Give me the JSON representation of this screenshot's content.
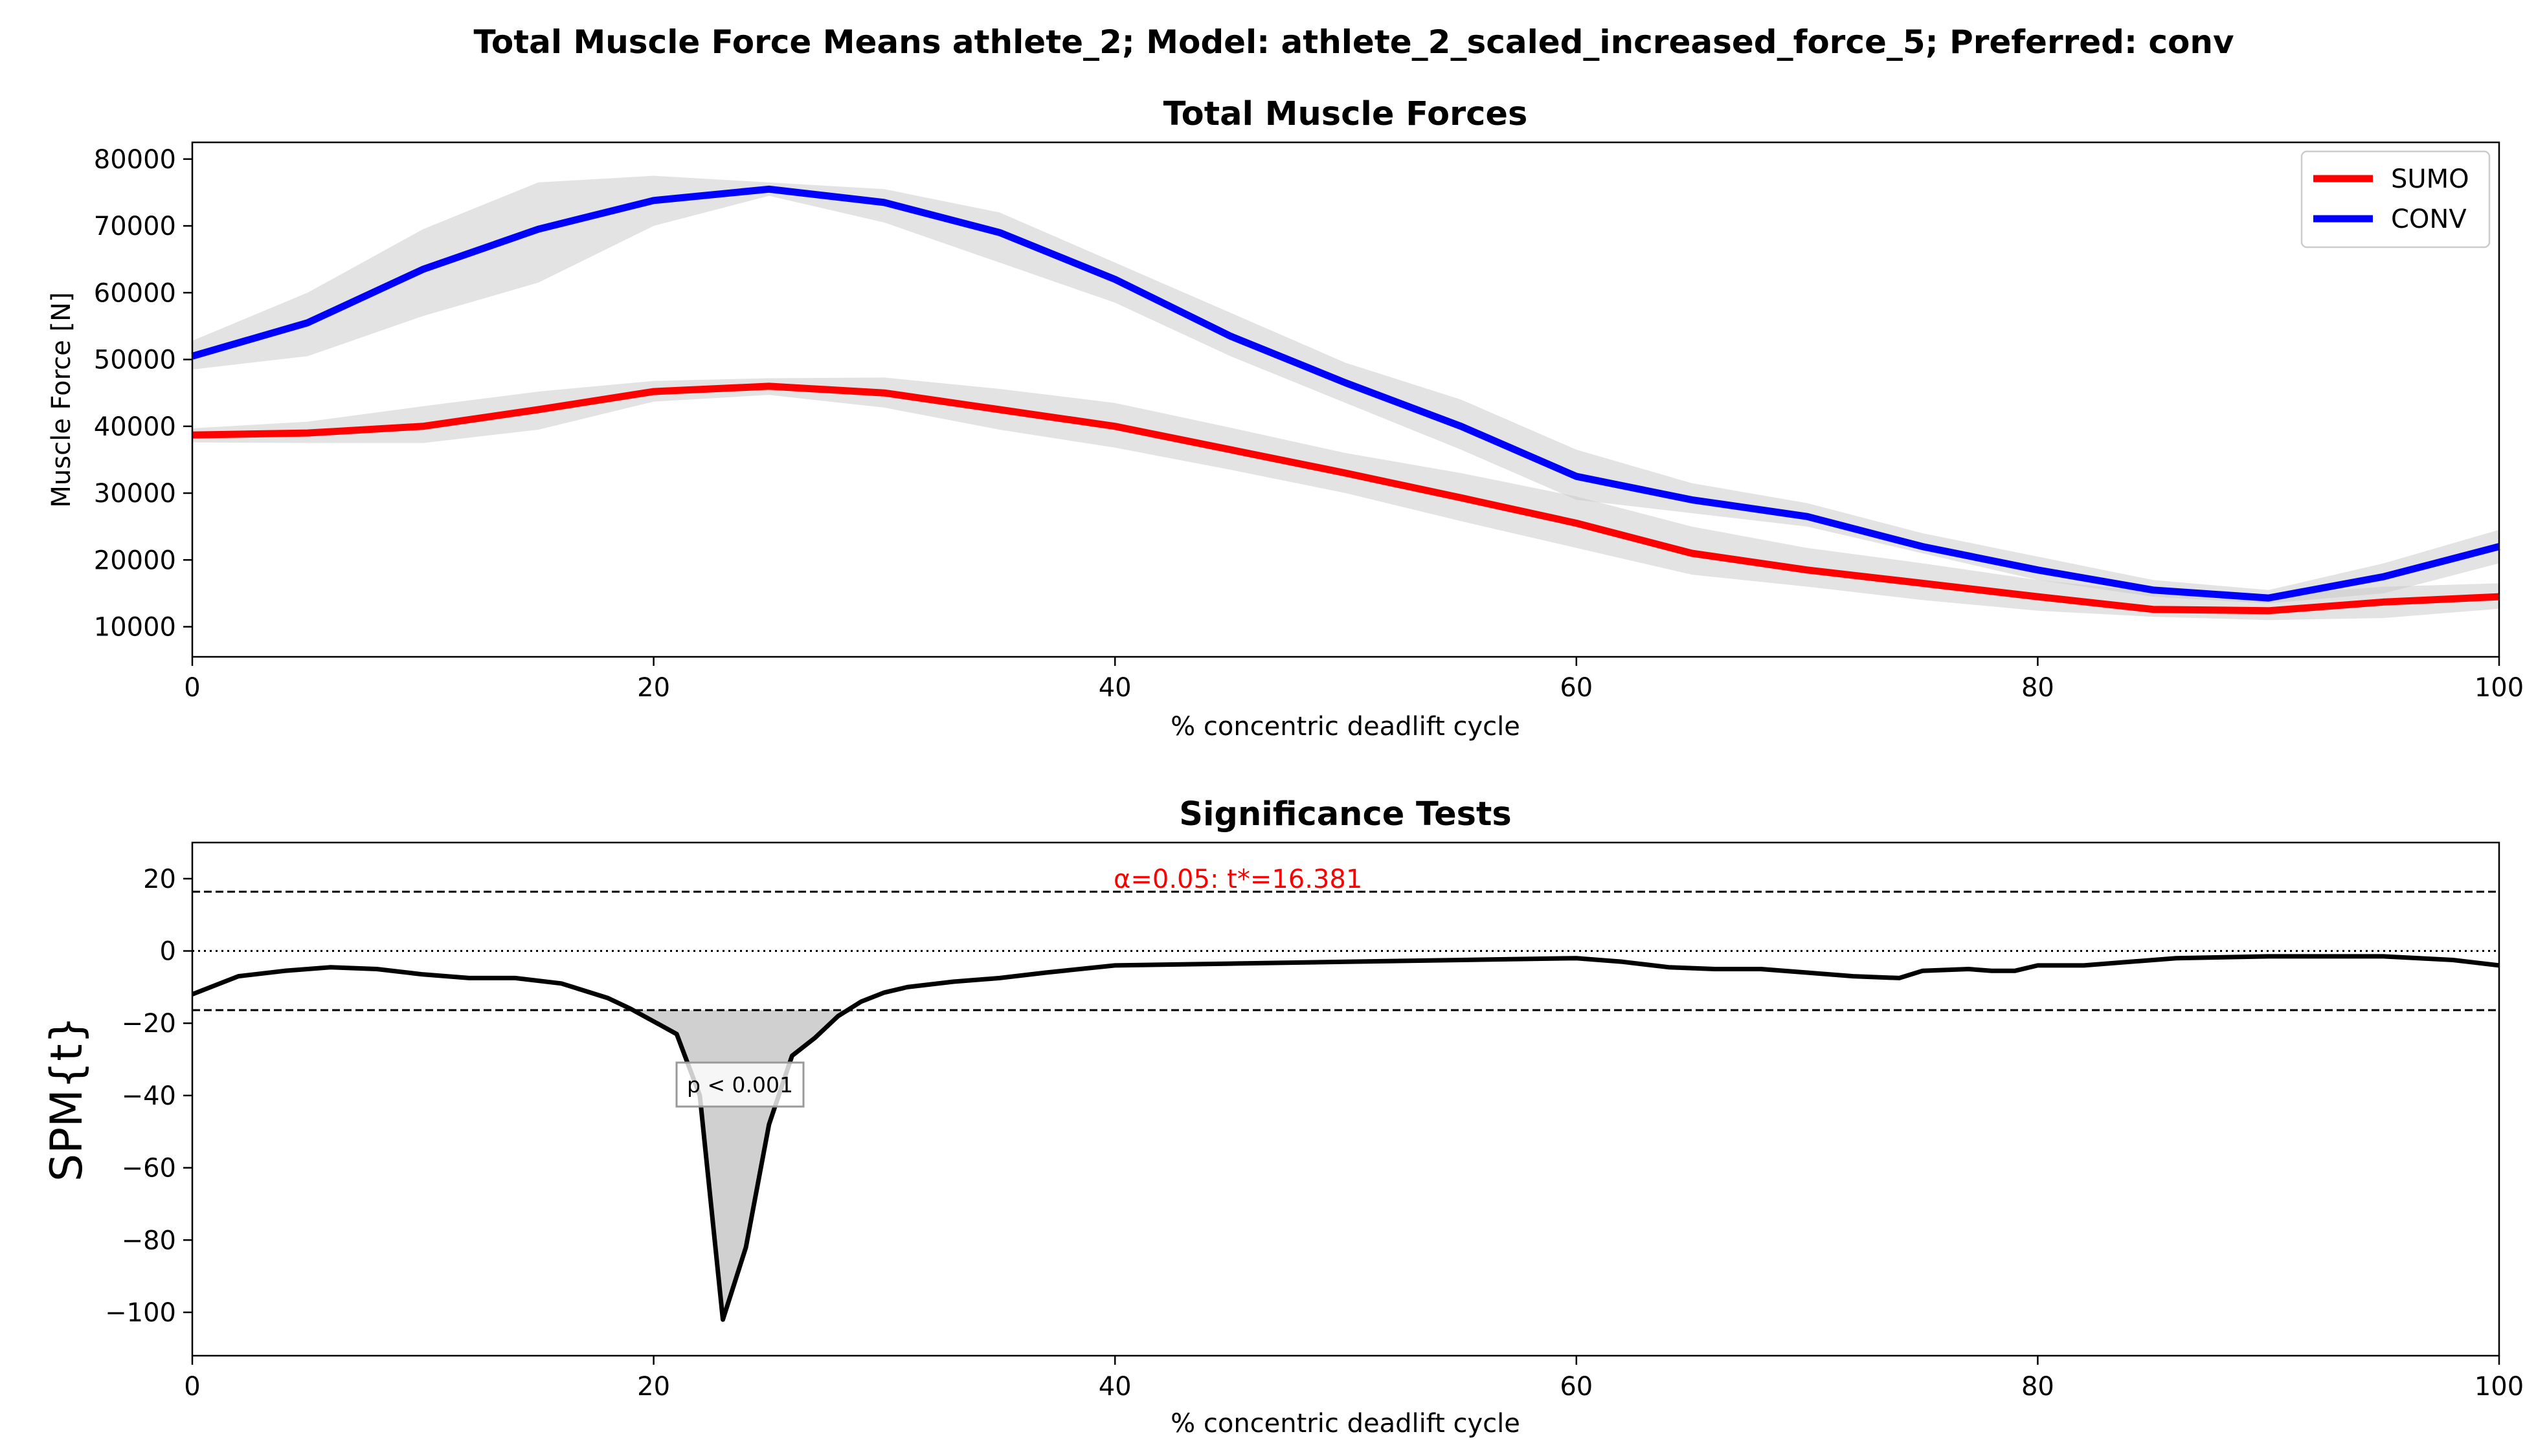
{
  "figure": {
    "suptitle": "Total Muscle Force Means athlete_2; Model: athlete_2_scaled_increased_force_5; Preferred: conv"
  },
  "chart_data": [
    {
      "type": "line",
      "title": "Total Muscle Forces",
      "xlabel": "% concentric deadlift cycle",
      "ylabel": "Muscle Force [N]",
      "xlim": [
        0,
        100
      ],
      "ylim": [
        5500,
        82500
      ],
      "xticks": [
        0,
        20,
        40,
        60,
        80,
        100
      ],
      "yticks": [
        10000,
        20000,
        30000,
        40000,
        50000,
        60000,
        70000,
        80000
      ],
      "grid": false,
      "legend_position": "top-right",
      "x": [
        0,
        5,
        10,
        15,
        20,
        25,
        30,
        35,
        40,
        45,
        50,
        55,
        60,
        65,
        70,
        75,
        80,
        85,
        90,
        95,
        100
      ],
      "series": [
        {
          "name": "SUMO",
          "color": "#ff0000",
          "values": [
            38700,
            39000,
            40000,
            42500,
            45200,
            46000,
            45000,
            42500,
            40000,
            36500,
            33000,
            29300,
            25500,
            21000,
            18500,
            16500,
            14500,
            12600,
            12400,
            13700,
            14500
          ],
          "band_upper": [
            39700,
            40700,
            43000,
            45200,
            46800,
            47200,
            47300,
            45600,
            43500,
            39800,
            36000,
            33000,
            29500,
            25000,
            21800,
            19500,
            17000,
            15200,
            14700,
            16000,
            16500
          ],
          "band_lower": [
            37600,
            37500,
            37500,
            39500,
            43700,
            44700,
            42800,
            39500,
            36800,
            33500,
            30000,
            25800,
            21800,
            17800,
            16000,
            14000,
            12400,
            11500,
            11000,
            11300,
            12700
          ]
        },
        {
          "name": "CONV",
          "color": "#0000ff",
          "values": [
            50500,
            55500,
            63500,
            69500,
            73800,
            75500,
            73500,
            69000,
            62000,
            53500,
            46500,
            40000,
            32500,
            29000,
            26500,
            22000,
            18500,
            15500,
            14300,
            17500,
            22000
          ],
          "band_upper": [
            52800,
            60000,
            69500,
            76500,
            77500,
            76500,
            75500,
            72000,
            64500,
            57000,
            49500,
            44000,
            36500,
            31500,
            28500,
            24000,
            20500,
            17000,
            15500,
            19500,
            24500
          ],
          "band_lower": [
            48500,
            50500,
            56500,
            61500,
            70000,
            74500,
            70500,
            64500,
            58500,
            50500,
            43500,
            36500,
            29000,
            27000,
            25000,
            21000,
            17000,
            14500,
            13500,
            15000,
            19500
          ]
        }
      ]
    },
    {
      "type": "line",
      "title": "Significance Tests",
      "xlabel": "% concentric deadlift cycle",
      "ylabel": "SPM{t}",
      "xlim": [
        0,
        100
      ],
      "ylim": [
        -112,
        30
      ],
      "xticks": [
        0,
        20,
        40,
        60,
        80,
        100
      ],
      "yticks": [
        20,
        0,
        -20,
        -40,
        -60,
        -80,
        -100
      ],
      "grid": false,
      "threshold": 16.381,
      "threshold_label": "α=0.05:  t*=16.381",
      "cluster_label": "p < 0.001",
      "cluster_range": [
        18.8,
        28.8
      ],
      "series": [
        {
          "name": "",
          "color": "#000000",
          "x": [
            0,
            2,
            4,
            6,
            8,
            10,
            12,
            14,
            16,
            18,
            19,
            20,
            21,
            22,
            23,
            24,
            25,
            26,
            27,
            28,
            29,
            30,
            31,
            33,
            35,
            37,
            40,
            45,
            50,
            55,
            60,
            62,
            64,
            66,
            68,
            70,
            72,
            74,
            75,
            77,
            78,
            79,
            80,
            82,
            84,
            86,
            90,
            95,
            98,
            100
          ],
          "values": [
            -12,
            -7,
            -5.5,
            -4.5,
            -5,
            -6.5,
            -7.5,
            -7.5,
            -9,
            -13,
            -16,
            -19.5,
            -23,
            -40,
            -102,
            -82,
            -48,
            -29,
            -24,
            -18,
            -14,
            -11.5,
            -10,
            -8.5,
            -7.5,
            -6,
            -4,
            -3.5,
            -3,
            -2.5,
            -2,
            -3,
            -4.5,
            -5,
            -5,
            -6,
            -7,
            -7.5,
            -5.5,
            -5,
            -5.5,
            -5.5,
            -4,
            -4,
            -3,
            -2,
            -1.5,
            -1.5,
            -2.5,
            -4
          ]
        }
      ]
    }
  ]
}
